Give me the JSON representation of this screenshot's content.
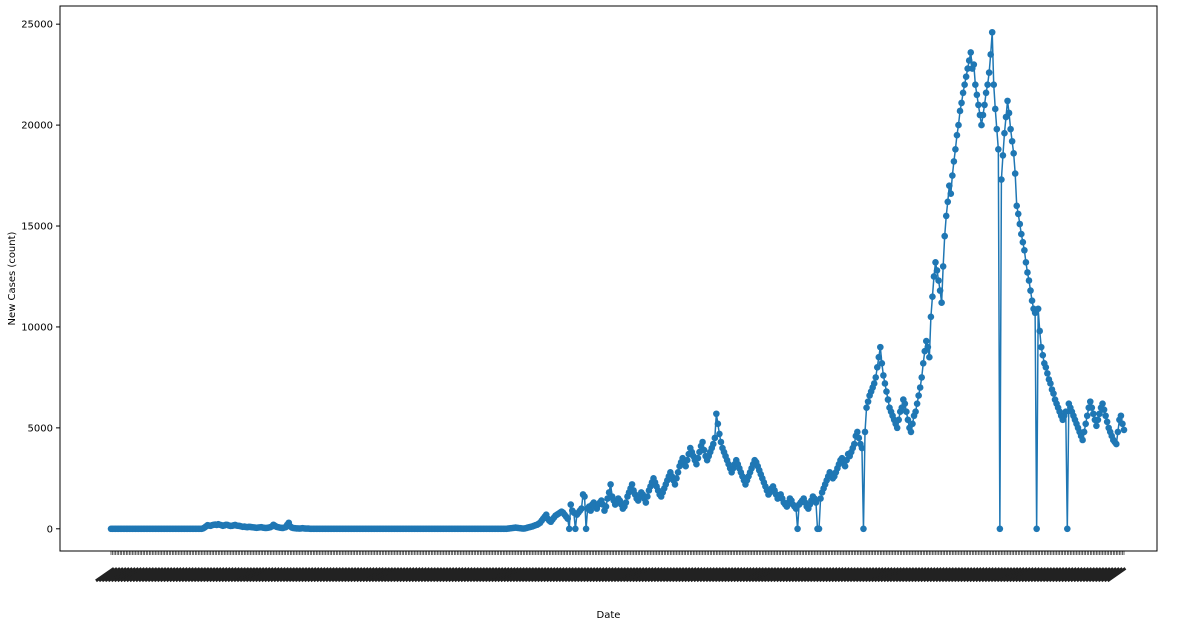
{
  "chart_data": {
    "type": "line",
    "title": "",
    "xlabel": "Date",
    "ylabel": "New Cases (count)",
    "ylim": [
      -1100,
      25900
    ],
    "yticks": [
      0,
      5000,
      10000,
      15000,
      20000,
      25000
    ],
    "grid": false,
    "legend": "none",
    "x_tick_labels_note": "",
    "series": [
      {
        "color": "#1f77b4",
        "marker": "circle",
        "values": [
          0,
          0,
          0,
          0,
          0,
          0,
          0,
          0,
          0,
          0,
          0,
          0,
          0,
          0,
          0,
          0,
          0,
          0,
          0,
          0,
          0,
          0,
          0,
          0,
          0,
          0,
          0,
          0,
          0,
          0,
          0,
          0,
          0,
          0,
          0,
          0,
          0,
          0,
          0,
          0,
          0,
          0,
          0,
          0,
          0,
          0,
          0,
          0,
          0,
          0,
          0,
          0,
          0,
          0,
          0,
          0,
          0,
          0,
          0,
          0,
          20,
          60,
          120,
          180,
          160,
          150,
          180,
          200,
          210,
          190,
          230,
          200,
          180,
          150,
          170,
          200,
          190,
          160,
          140,
          150,
          170,
          190,
          160,
          150,
          140,
          120,
          100,
          110,
          90,
          80,
          100,
          90,
          80,
          70,
          60,
          50,
          60,
          70,
          80,
          60,
          50,
          40,
          50,
          60,
          80,
          120,
          200,
          150,
          100,
          80,
          60,
          50,
          40,
          60,
          80,
          200,
          300,
          120,
          60,
          40,
          30,
          20,
          20,
          10,
          20,
          30,
          20,
          10,
          10,
          10,
          0,
          0,
          0,
          0,
          0,
          0,
          0,
          0,
          0,
          0,
          0,
          0,
          0,
          0,
          0,
          0,
          0,
          0,
          0,
          0,
          0,
          0,
          0,
          0,
          0,
          0,
          0,
          0,
          0,
          0,
          0,
          0,
          0,
          0,
          0,
          0,
          0,
          0,
          0,
          0,
          0,
          0,
          0,
          0,
          0,
          0,
          0,
          0,
          0,
          0,
          0,
          0,
          0,
          0,
          0,
          0,
          0,
          0,
          0,
          0,
          0,
          0,
          0,
          0,
          0,
          0,
          0,
          0,
          0,
          0,
          0,
          0,
          0,
          0,
          0,
          0,
          0,
          0,
          0,
          0,
          0,
          0,
          0,
          0,
          0,
          0,
          0,
          0,
          0,
          0,
          0,
          0,
          0,
          0,
          0,
          0,
          0,
          0,
          0,
          0,
          0,
          0,
          0,
          0,
          0,
          0,
          0,
          0,
          0,
          0,
          0,
          0,
          0,
          0,
          0,
          0,
          0,
          0,
          0,
          0,
          0,
          0,
          0,
          0,
          0,
          0,
          0,
          0,
          0,
          10,
          20,
          30,
          40,
          50,
          60,
          50,
          40,
          30,
          20,
          10,
          20,
          40,
          60,
          80,
          100,
          120,
          150,
          180,
          200,
          250,
          300,
          400,
          500,
          600,
          700,
          500,
          400,
          350,
          450,
          550,
          650,
          700,
          750,
          800,
          850,
          800,
          700,
          600,
          500,
          0,
          1200,
          900,
          800,
          0,
          700,
          800,
          900,
          1000,
          1700,
          1600,
          0,
          1000,
          1100,
          900,
          1200,
          1300,
          1100,
          1000,
          1200,
          1300,
          1400,
          1200,
          900,
          1100,
          1500,
          1800,
          2200,
          1600,
          1400,
          1200,
          1300,
          1500,
          1400,
          1200,
          1000,
          1100,
          1300,
          1600,
          1800,
          2000,
          2200,
          1900,
          1700,
          1500,
          1400,
          1600,
          1800,
          1700,
          1500,
          1300,
          1600,
          1900,
          2100,
          2300,
          2500,
          2300,
          2100,
          1900,
          1700,
          1600,
          1800,
          2000,
          2200,
          2400,
          2600,
          2800,
          2600,
          2400,
          2200,
          2500,
          2800,
          3100,
          3300,
          3500,
          3300,
          3100,
          3400,
          3700,
          4000,
          3800,
          3600,
          3400,
          3200,
          3500,
          3800,
          4100,
          4300,
          3900,
          3600,
          3400,
          3600,
          3800,
          4000,
          4200,
          4500,
          5700,
          5200,
          4700,
          4300,
          4000,
          3800,
          3600,
          3400,
          3200,
          3000,
          2800,
          3000,
          3200,
          3400,
          3200,
          3000,
          2800,
          2600,
          2400,
          2200,
          2400,
          2600,
          2800,
          3000,
          3200,
          3400,
          3300,
          3100,
          2900,
          2700,
          2500,
          2300,
          2100,
          1900,
          1700,
          1800,
          2000,
          2100,
          1900,
          1700,
          1500,
          1600,
          1700,
          1500,
          1300,
          1200,
          1100,
          1300,
          1500,
          1400,
          1200,
          1100,
          1000,
          0,
          1200,
          1300,
          1400,
          1500,
          1300,
          1100,
          1000,
          1200,
          1400,
          1600,
          1500,
          1300,
          0,
          0,
          1500,
          1800,
          2000,
          2200,
          2400,
          2600,
          2800,
          2700,
          2500,
          2600,
          2800,
          3000,
          3200,
          3400,
          3500,
          3300,
          3100,
          3400,
          3700,
          3600,
          3800,
          4000,
          4200,
          4600,
          4800,
          4500,
          4200,
          4000,
          0,
          4800,
          6000,
          6300,
          6600,
          6800,
          7000,
          7200,
          7500,
          8000,
          8500,
          9000,
          8200,
          7600,
          7200,
          6800,
          6400,
          6000,
          5800,
          5600,
          5400,
          5200,
          5000,
          5400,
          5800,
          6000,
          6400,
          6200,
          5800,
          5400,
          5000,
          4800,
          5200,
          5600,
          5800,
          6200,
          6600,
          7000,
          7500,
          8200,
          8800,
          9300,
          9000,
          8500,
          10500,
          11500,
          12500,
          13200,
          12800,
          12300,
          11800,
          11200,
          13000,
          14500,
          15500,
          16200,
          17000,
          16600,
          17500,
          18200,
          18800,
          19500,
          20000,
          20700,
          21100,
          21600,
          22000,
          22400,
          22800,
          23200,
          23600,
          22800,
          23000,
          22000,
          21500,
          21000,
          20500,
          20000,
          20500,
          21000,
          21600,
          22000,
          22600,
          23500,
          24600,
          22000,
          20800,
          19800,
          18800,
          0,
          17300,
          18500,
          19600,
          20400,
          21200,
          20600,
          19800,
          19200,
          18600,
          17600,
          16000,
          15600,
          15100,
          14600,
          14200,
          13800,
          13200,
          12700,
          12300,
          11800,
          11300,
          10900,
          10700,
          0,
          10900,
          9800,
          9000,
          8600,
          8200,
          8000,
          7700,
          7400,
          7200,
          6900,
          6700,
          6400,
          6200,
          6000,
          5800,
          5600,
          5400,
          5600,
          5800,
          0,
          6200,
          6000,
          5800,
          5600,
          5400,
          5200,
          5000,
          4800,
          4600,
          4400,
          4800,
          5200,
          5600,
          6000,
          6300,
          6000,
          5700,
          5400,
          5100,
          5400,
          5700,
          6000,
          6200,
          5900,
          5600,
          5300,
          5000,
          4800,
          4600,
          4400,
          4300,
          4200,
          4800,
          5400,
          5600,
          5200,
          4900
        ]
      }
    ]
  }
}
